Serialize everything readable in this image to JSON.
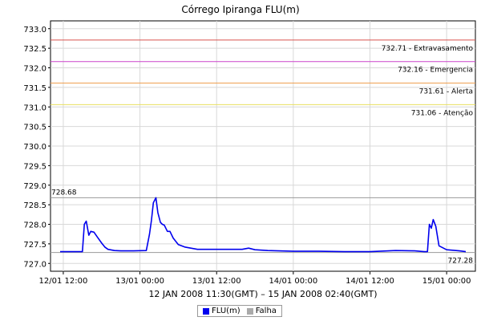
{
  "chart_data": {
    "type": "line",
    "title": "Córrego Ipiranga FLU(m)",
    "xlabel": "12 JAN 2008 11:30(GMT) – 15 JAN 2008 02:40(GMT)",
    "ylabel": "",
    "x_unit": "hours since 12/01 00:00 (GMT)",
    "xlim": [
      10.0,
      76.5
    ],
    "ylim": [
      726.8,
      733.2
    ],
    "grid": true,
    "y_ticks": [
      727.0,
      727.5,
      728.0,
      728.5,
      729.0,
      729.5,
      730.0,
      730.5,
      731.0,
      731.5,
      732.0,
      732.5,
      733.0
    ],
    "y_tick_labels": [
      "727.0",
      "727.5",
      "728.0",
      "728.5",
      "729.0",
      "729.5",
      "730.0",
      "730.5",
      "731.0",
      "731.5",
      "732.0",
      "732.5",
      "733.0"
    ],
    "x_ticks": [
      12,
      24,
      36,
      48,
      60,
      72
    ],
    "x_tick_labels": [
      "12/01 12:00",
      "13/01 00:00",
      "13/01 12:00",
      "14/01 00:00",
      "14/01 12:00",
      "15/01 00:00"
    ],
    "thresholds": [
      {
        "value": 732.71,
        "label": "732.71 - Extravasamento",
        "color": "#d9534f"
      },
      {
        "value": 732.16,
        "label": "732.16 - Emergencia",
        "color": "#cc44cc"
      },
      {
        "value": 731.61,
        "label": "731.61 - Alerta",
        "color": "#f0a050"
      },
      {
        "value": 731.06,
        "label": "731.06 - Atenção",
        "color": "#e8e060"
      }
    ],
    "max_marker": {
      "value": 728.68,
      "label": "728.68",
      "color": "#999999"
    },
    "min_marker": {
      "value": 727.28,
      "label": "727.28",
      "color": "#999999"
    },
    "series": [
      {
        "name": "FLU(m)",
        "color": "#0000ee",
        "x": [
          11.5,
          13.0,
          14.5,
          15.0,
          15.3,
          15.6,
          16.0,
          16.3,
          16.8,
          17.3,
          18.0,
          18.5,
          19.0,
          20.0,
          21.0,
          23.0,
          25.0,
          25.5,
          25.8,
          26.1,
          26.5,
          26.8,
          27.2,
          27.5,
          27.8,
          28.3,
          28.7,
          29.2,
          30.0,
          31.0,
          33.0,
          36.0,
          38.0,
          40.0,
          41.0,
          42.0,
          44.0,
          48.0,
          52.0,
          56.0,
          60.0,
          64.0,
          67.0,
          68.5,
          69.0,
          69.3,
          69.6,
          69.9,
          70.3,
          70.8,
          72.0,
          74.0,
          75.0
        ],
        "y": [
          727.3,
          727.3,
          727.3,
          727.3,
          728.0,
          728.08,
          727.72,
          727.82,
          727.8,
          727.68,
          727.52,
          727.42,
          727.36,
          727.33,
          727.32,
          727.32,
          727.33,
          727.75,
          728.1,
          728.55,
          728.68,
          728.3,
          728.05,
          728.0,
          727.98,
          727.82,
          727.82,
          727.65,
          727.48,
          727.42,
          727.36,
          727.36,
          727.36,
          727.36,
          727.39,
          727.35,
          727.33,
          727.31,
          727.31,
          727.3,
          727.3,
          727.33,
          727.32,
          727.3,
          727.3,
          728.0,
          727.9,
          728.12,
          727.95,
          727.45,
          727.35,
          727.32,
          727.3
        ]
      },
      {
        "name": "Falha",
        "color": "#aaaaaa",
        "x": [],
        "y": []
      }
    ],
    "legend_position": "bottom"
  }
}
